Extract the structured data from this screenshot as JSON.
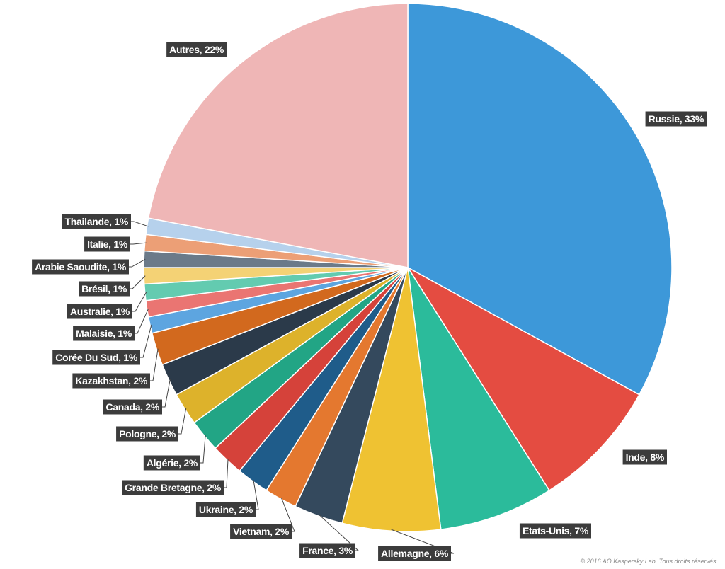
{
  "chart_data": {
    "type": "pie",
    "title": "",
    "slices": [
      {
        "label": "Russie, 33%",
        "value": 33,
        "color": "#3d98d9"
      },
      {
        "label": "Inde, 8%",
        "value": 8,
        "color": "#e44c41"
      },
      {
        "label": "Etats-Unis, 7%",
        "value": 7,
        "color": "#2bbb9b"
      },
      {
        "label": "Allemagne, 6%",
        "value": 6,
        "color": "#efc232"
      },
      {
        "label": "France, 3%",
        "value": 3,
        "color": "#34495d"
      },
      {
        "label": "Vietnam, 2%",
        "value": 2,
        "color": "#e4782f"
      },
      {
        "label": "Ukraine, 2%",
        "value": 2,
        "color": "#1f5c8a"
      },
      {
        "label": "Grande Bretagne, 2%",
        "value": 2,
        "color": "#d5423a"
      },
      {
        "label": "Algérie, 2%",
        "value": 2,
        "color": "#22a585"
      },
      {
        "label": "Pologne, 2%",
        "value": 2,
        "color": "#ddb22b"
      },
      {
        "label": "Canada, 2%",
        "value": 2,
        "color": "#2b3a4a"
      },
      {
        "label": "Kazakhstan, 2%",
        "value": 2,
        "color": "#d2691e"
      },
      {
        "label": "Corée Du Sud, 1%",
        "value": 1,
        "color": "#5da5e0"
      },
      {
        "label": "Malaisie, 1%",
        "value": 1,
        "color": "#ea7572"
      },
      {
        "label": "Australie, 1%",
        "value": 1,
        "color": "#63cbb0"
      },
      {
        "label": "Brésil, 1%",
        "value": 1,
        "color": "#f4d275"
      },
      {
        "label": "Arabie Saoudite, 1%",
        "value": 1,
        "color": "#6b7a89"
      },
      {
        "label": "Italie, 1%",
        "value": 1,
        "color": "#ec9f76"
      },
      {
        "label": "Thailande, 1%",
        "value": 1,
        "color": "#b6d1ec"
      },
      {
        "label": "Autres, 22%",
        "value": 22,
        "color": "#efb6b6"
      }
    ]
  },
  "footer": {
    "copyright": "© 2016 AO Kaspersky Lab. Tous droits réservés."
  }
}
